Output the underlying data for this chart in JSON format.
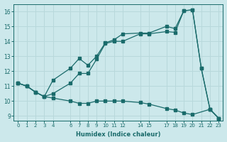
{
  "xlabel": "Humidex (Indice chaleur)",
  "bg_color": "#cce8eb",
  "grid_color": "#b8d8db",
  "line_color": "#1a6b6b",
  "xlim": [
    -0.5,
    23.5
  ],
  "ylim": [
    8.7,
    16.5
  ],
  "xticks": [
    0,
    1,
    2,
    3,
    4,
    6,
    7,
    8,
    9,
    10,
    11,
    12,
    14,
    15,
    17,
    18,
    19,
    20,
    21,
    22,
    23
  ],
  "yticks": [
    9,
    10,
    11,
    12,
    13,
    14,
    15,
    16
  ],
  "series": [
    {
      "x": [
        0,
        1,
        2,
        3,
        4,
        6,
        7,
        8,
        9,
        10,
        11,
        12,
        14,
        15,
        17,
        18,
        19,
        20,
        22,
        23
      ],
      "y": [
        11.2,
        11.0,
        10.6,
        10.3,
        10.2,
        10.0,
        9.85,
        9.85,
        10.0,
        10.0,
        10.0,
        10.0,
        9.9,
        9.8,
        9.5,
        9.4,
        9.2,
        9.1,
        9.45,
        8.85
      ]
    },
    {
      "x": [
        0,
        1,
        2,
        3,
        4,
        6,
        7,
        8,
        9,
        10,
        11,
        12,
        14,
        15,
        17,
        18,
        19,
        20,
        21,
        22,
        23
      ],
      "y": [
        11.2,
        11.0,
        10.6,
        10.3,
        10.5,
        11.2,
        11.85,
        11.85,
        12.8,
        13.85,
        14.0,
        14.0,
        14.5,
        14.5,
        14.65,
        14.6,
        16.05,
        16.1,
        12.2,
        9.45,
        8.85
      ]
    },
    {
      "x": [
        0,
        1,
        2,
        3,
        4,
        6,
        7,
        8,
        9,
        10,
        11,
        12,
        14,
        15,
        17,
        18,
        19,
        20,
        21,
        22,
        23
      ],
      "y": [
        11.2,
        11.0,
        10.6,
        10.3,
        11.4,
        12.2,
        12.85,
        12.4,
        13.0,
        13.9,
        14.1,
        14.5,
        14.55,
        14.55,
        15.0,
        14.85,
        16.05,
        16.1,
        12.2,
        9.45,
        8.85
      ]
    }
  ]
}
